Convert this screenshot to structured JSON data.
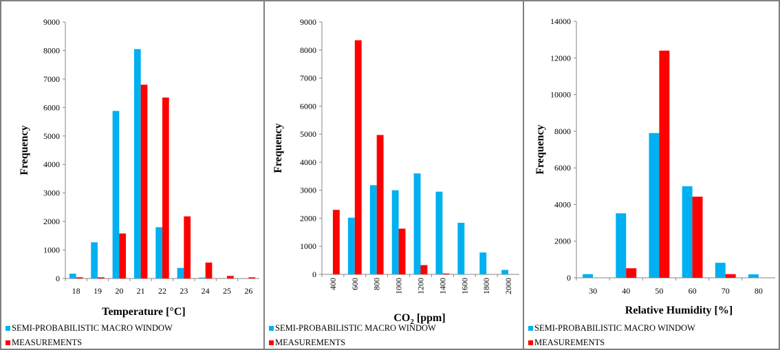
{
  "colors": {
    "semi": "#00B0F0",
    "meas": "#FF0000",
    "grid": "#bfbfbf",
    "axis": "#868686"
  },
  "chart_data": [
    {
      "type": "bar",
      "title": "",
      "xlabel": "Temperature [°C]",
      "ylabel": "Frequency",
      "ylim": [
        0,
        9000
      ],
      "yticks": [
        0,
        1000,
        2000,
        3000,
        4000,
        5000,
        6000,
        7000,
        8000,
        9000
      ],
      "categories": [
        "18",
        "19",
        "20",
        "21",
        "22",
        "23",
        "24",
        "25",
        "26"
      ],
      "series": [
        {
          "name": "SEMI-PROBABILISTIC MACRO WINDOW",
          "values": [
            170,
            1270,
            5880,
            8050,
            1800,
            370,
            30,
            0,
            0
          ]
        },
        {
          "name": "MEASUREMENTS",
          "values": [
            40,
            40,
            1580,
            6800,
            6350,
            2180,
            560,
            90,
            40
          ]
        }
      ],
      "grid": false,
      "legend_position": "bottom-left"
    },
    {
      "type": "bar",
      "title": "",
      "xlabel_main": "CO",
      "xlabel_sub": "2",
      "xlabel_tail": " [ppm]",
      "ylabel": "Frequency",
      "ylim": [
        0,
        9000
      ],
      "yticks": [
        0,
        1000,
        2000,
        3000,
        4000,
        5000,
        6000,
        7000,
        8000,
        9000
      ],
      "categories": [
        "400",
        "600",
        "800",
        "1000",
        "1200",
        "1400",
        "1600",
        "1800",
        "2000"
      ],
      "series": [
        {
          "name": "SEMI-PROBABILISTIC MACRO WINDOW",
          "values": [
            0,
            2020,
            3180,
            3000,
            3600,
            2950,
            1840,
            780,
            160
          ]
        },
        {
          "name": "MEASUREMENTS",
          "values": [
            2300,
            8350,
            4970,
            1630,
            330,
            30,
            0,
            0,
            0
          ]
        }
      ],
      "grid": false,
      "legend_position": "bottom-left"
    },
    {
      "type": "bar",
      "title": "",
      "xlabel": "Relative Humidity [%]",
      "ylabel": "Frequency",
      "ylim": [
        0,
        14000
      ],
      "yticks": [
        0,
        2000,
        4000,
        6000,
        8000,
        10000,
        12000,
        14000
      ],
      "categories": [
        "30",
        "40",
        "50",
        "60",
        "70",
        "80"
      ],
      "series": [
        {
          "name": "SEMI-PROBABILISTIC MACRO WINDOW",
          "values": [
            200,
            3520,
            7900,
            5000,
            820,
            190
          ]
        },
        {
          "name": "MEASUREMENTS",
          "values": [
            0,
            520,
            12400,
            4430,
            200,
            0
          ]
        }
      ],
      "grid": false,
      "legend_position": "bottom-left"
    }
  ]
}
